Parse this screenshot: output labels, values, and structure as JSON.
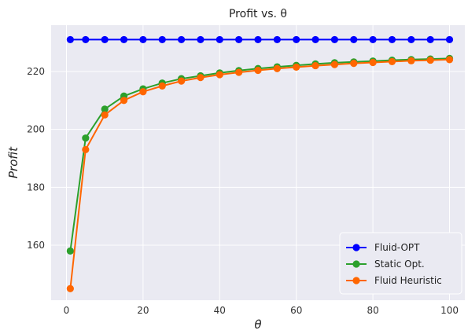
{
  "chart_data": {
    "type": "line",
    "title": "Profit vs. θ",
    "xlabel": "θ",
    "ylabel": "Profit",
    "xlim": [
      -4,
      104
    ],
    "ylim": [
      141,
      236
    ],
    "xticks": [
      0,
      20,
      40,
      60,
      80,
      100
    ],
    "yticks": [
      160,
      180,
      200,
      220
    ],
    "grid": true,
    "legend_position": "bottom-right",
    "x": [
      1,
      5,
      10,
      15,
      20,
      25,
      30,
      35,
      40,
      45,
      50,
      55,
      60,
      65,
      70,
      75,
      80,
      85,
      90,
      95,
      100
    ],
    "series": [
      {
        "name": "Fluid-OPT",
        "color": "#0000ff",
        "values": [
          231,
          231,
          231,
          231,
          231,
          231,
          231,
          231,
          231,
          231,
          231,
          231,
          231,
          231,
          231,
          231,
          231,
          231,
          231,
          231,
          231
        ]
      },
      {
        "name": "Static Opt.",
        "color": "#2ca02c",
        "values": [
          158,
          197,
          207,
          211.5,
          214,
          216,
          217.5,
          218.5,
          219.5,
          220.3,
          221,
          221.6,
          222.1,
          222.6,
          223,
          223.3,
          223.6,
          223.9,
          224.1,
          224.3,
          224.5
        ]
      },
      {
        "name": "Fluid Heuristic",
        "color": "#ff6600",
        "values": [
          145,
          193,
          205,
          210,
          213,
          215,
          216.7,
          217.9,
          218.9,
          219.7,
          220.4,
          221,
          221.5,
          222,
          222.4,
          222.8,
          223.1,
          223.4,
          223.7,
          223.9,
          224.1
        ]
      }
    ]
  }
}
